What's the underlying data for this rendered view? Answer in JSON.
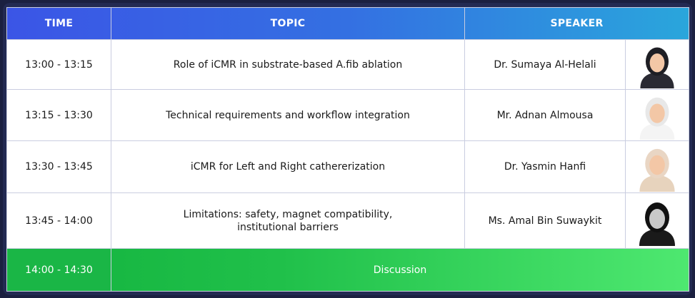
{
  "table": {
    "header": [
      "TIME",
      "TOPIC",
      "SPEAKER"
    ],
    "rows": [
      {
        "time": "13:00 - 13:15",
        "topic": [
          "Role of iCMR in substrate-based A.fib ablation"
        ],
        "speaker": "Dr. Sumaya Al-Helali"
      },
      {
        "time": "13:15 - 13:30",
        "topic": [
          "Technical requirements and workflow integration"
        ],
        "speaker": "Mr. Adnan Almousa"
      },
      {
        "time": "13:30 - 13:45",
        "topic": [
          "iCMR for Left and Right cathererization"
        ],
        "speaker": "Dr. Yasmin Hanfi"
      },
      {
        "time": "13:45 - 14:00",
        "topic": [
          "Limitations: safety, magnet compatibility,",
          "institutional barriers"
        ],
        "speaker": "Ms. Amal Bin Suwaykit"
      }
    ],
    "final": {
      "time": "14:00 - 14:30",
      "topic": "Discussion"
    }
  }
}
